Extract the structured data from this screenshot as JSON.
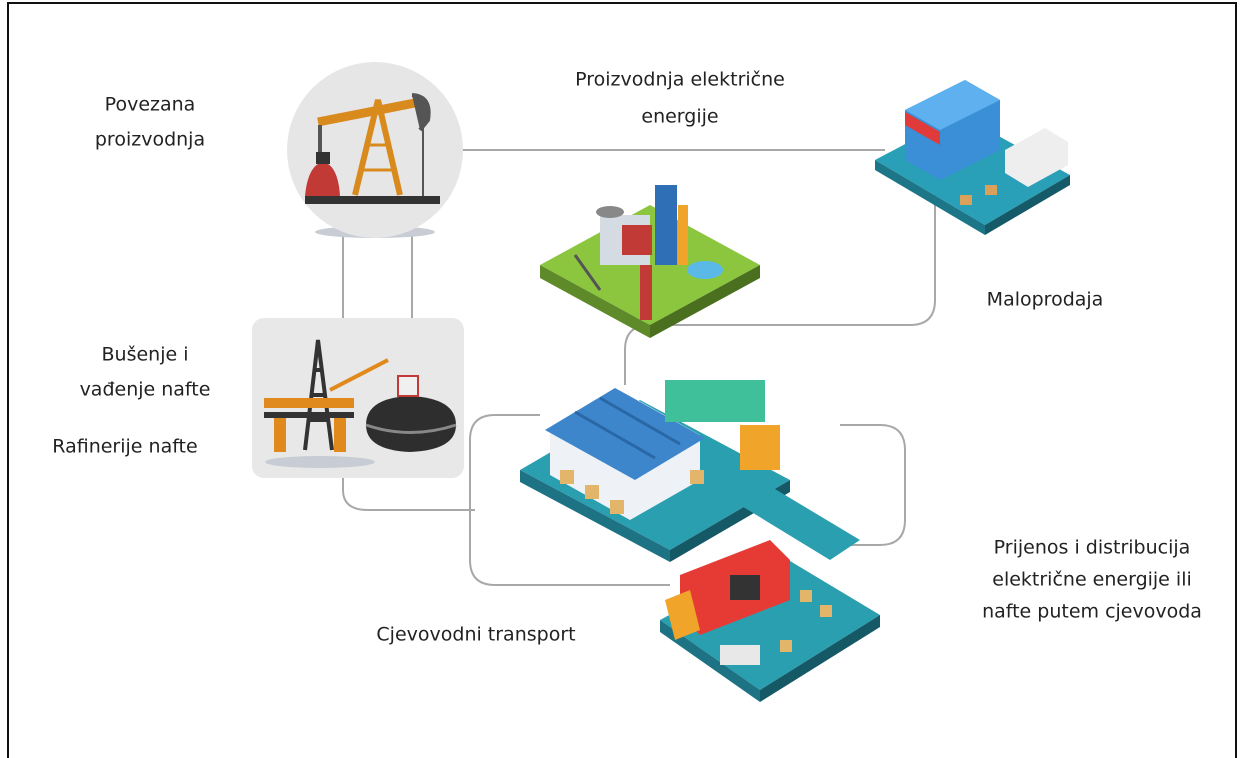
{
  "nodes": [
    {
      "lines": [
        "Povezana",
        "proizvodnja"
      ]
    },
    {
      "lines": [
        "Proizvodnja električne",
        "energije"
      ]
    },
    {
      "lines": [
        "Maloprodaja"
      ]
    },
    {
      "lines": [
        "Bušenje i",
        "vađenje nafte"
      ]
    },
    {
      "lines": [
        "Rafinerije nafte"
      ]
    },
    {
      "lines": [
        "Prijenos i distribucija",
        "električne energije ili",
        "nafte putem cjevovoda"
      ]
    },
    {
      "lines": [
        "Cjevovodni transport"
      ]
    }
  ]
}
